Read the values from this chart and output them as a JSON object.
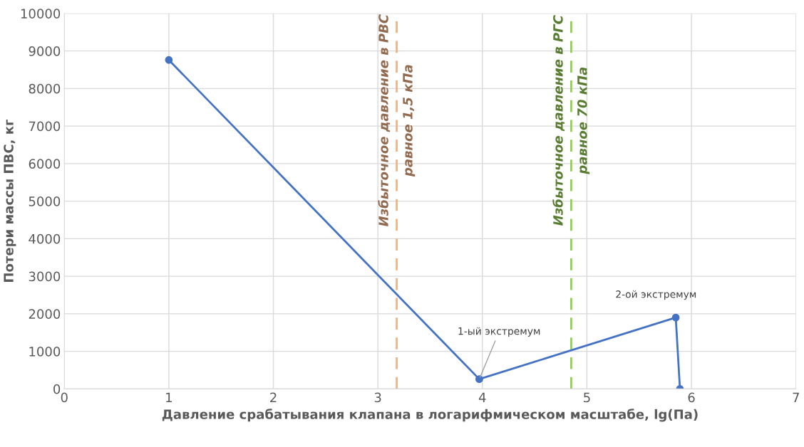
{
  "chart_data": {
    "type": "line",
    "xlabel": "Давление срабатывания клапана в логарифмическом масштабе, lg(Па)",
    "ylabel": "Потери массы ПВС, кг",
    "series": [
      {
        "color": "#4472c4",
        "x": [
          1,
          3.97,
          5.85,
          5.89
        ],
        "values": [
          8760,
          260,
          1900,
          0
        ]
      }
    ],
    "xlim": [
      0,
      7
    ],
    "xticks": [
      0,
      1,
      2,
      3,
      4,
      5,
      6,
      7
    ],
    "ylim": [
      0,
      10000
    ],
    "yticks": [
      0,
      1000,
      2000,
      3000,
      4000,
      5000,
      6000,
      7000,
      8000,
      9000,
      10000
    ],
    "grid": true,
    "marker": "circle",
    "line_style": "solid",
    "ref_lines": [
      {
        "axis": "x",
        "value": 3.18,
        "label": "Избыточное давление в РВС\nравное 1,5 кПа",
        "color": "#f4b183",
        "line_style": "dashed"
      },
      {
        "axis": "x",
        "value": 4.85,
        "label": "Избыточное давление в РГС\nравное 70 кПа",
        "color": "#92d050",
        "line_style": "dashed"
      }
    ],
    "annotations": [
      {
        "text": "1-ый экстремум",
        "x": 3.97,
        "y": 260
      },
      {
        "text": "2-ой экстремум",
        "x": 5.85,
        "y": 1900
      }
    ]
  }
}
